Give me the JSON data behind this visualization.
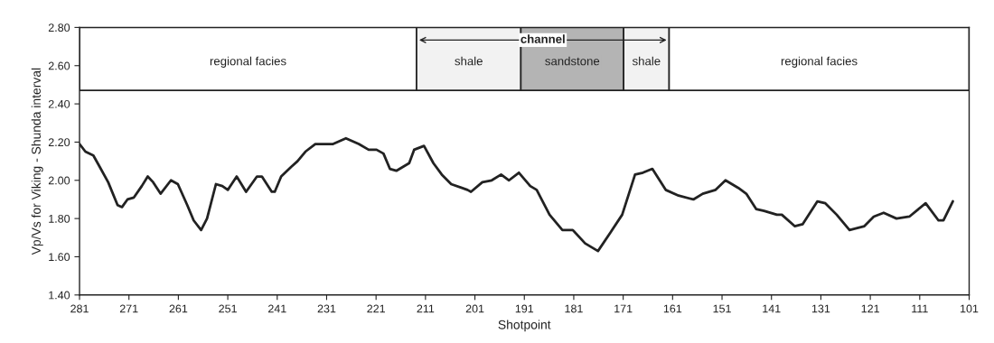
{
  "chart_data": {
    "type": "line",
    "xlabel": "Shotpoint",
    "ylabel": "Vp/Vs for Viking - Shunda interval",
    "xlim": [
      281,
      101
    ],
    "xticks": [
      281,
      271,
      261,
      251,
      241,
      231,
      221,
      211,
      201,
      191,
      181,
      171,
      161,
      151,
      141,
      131,
      121,
      111,
      101
    ],
    "ylim": [
      1.4,
      2.8
    ],
    "yticks": [
      {
        "value": 1.4,
        "label": "1.40"
      },
      {
        "value": 1.6,
        "label": "1.60"
      },
      {
        "value": 1.8,
        "label": "1.80"
      },
      {
        "value": 2.0,
        "label": "2.00"
      },
      {
        "value": 2.2,
        "label": "2.20"
      },
      {
        "value": 2.4,
        "label": "2.40"
      },
      {
        "value": 2.6,
        "label": "2.60"
      },
      {
        "value": 2.8,
        "label": "2.80"
      }
    ],
    "grid": false,
    "legend": false,
    "marker": "none",
    "line_style": "solid",
    "ref_lines": [
      {
        "axis": "y",
        "value": 2.47,
        "color": "#222222"
      }
    ],
    "bands": [
      {
        "axis": "x",
        "from": 281,
        "to": 212.8,
        "label": "regional facies",
        "color": "#ffffff"
      },
      {
        "axis": "x",
        "from": 212.8,
        "to": 191.7,
        "label": "shale",
        "color": "#f2f2f2"
      },
      {
        "axis": "x",
        "from": 191.7,
        "to": 170.9,
        "label": "sandstone",
        "color": "#b4b4b4"
      },
      {
        "axis": "x",
        "from": 170.9,
        "to": 161.7,
        "label": "shale",
        "color": "#f2f2f2"
      },
      {
        "axis": "x",
        "from": 161.7,
        "to": 101,
        "label": "regional facies",
        "color": "#ffffff"
      }
    ],
    "annotations": [
      "channel"
    ],
    "series": [
      {
        "color": "#222222",
        "x": [
          281,
          279.8,
          278.2,
          276.9,
          275.2,
          273.3,
          272.4,
          271.3,
          270.0,
          268.4,
          267.2,
          266.1,
          264.6,
          262.5,
          261.1,
          259.2,
          257.9,
          256.4,
          255.2,
          253.4,
          252.1,
          251.0,
          249.2,
          247.3,
          245.1,
          244.1,
          242.1,
          241.5,
          240.2,
          238.2,
          236.9,
          235.3,
          233.3,
          229.7,
          227.1,
          224.5,
          222.5,
          220.9,
          219.5,
          218.2,
          216.9,
          214.3,
          213.3,
          211.3,
          209.4,
          207.7,
          205.8,
          202.5,
          201.8,
          199.5,
          197.6,
          195.7,
          194.1,
          192.1,
          189.8,
          188.5,
          185.9,
          183.3,
          181.2,
          178.7,
          176.1,
          173.5,
          171.2,
          168.6,
          167.0,
          165.1,
          162.4,
          159.8,
          156.8,
          154.9,
          152.3,
          150.3,
          147.7,
          146.1,
          144.1,
          142.5,
          139.9,
          138.9,
          136.3,
          134.7,
          131.7,
          130.1,
          127.8,
          125.2,
          122.2,
          120.3,
          118.3,
          115.7,
          113.1,
          109.8,
          107.2,
          106.2,
          104.3
        ],
        "values": [
          2.19,
          2.15,
          2.13,
          2.07,
          1.99,
          1.87,
          1.86,
          1.9,
          1.91,
          1.97,
          2.02,
          1.99,
          1.93,
          2.0,
          1.98,
          1.87,
          1.79,
          1.74,
          1.8,
          1.98,
          1.97,
          1.95,
          2.02,
          1.94,
          2.02,
          2.02,
          1.94,
          1.94,
          2.02,
          2.07,
          2.1,
          2.15,
          2.19,
          2.19,
          2.22,
          2.19,
          2.16,
          2.16,
          2.14,
          2.06,
          2.05,
          2.09,
          2.16,
          2.18,
          2.09,
          2.03,
          1.98,
          1.95,
          1.94,
          1.99,
          2.0,
          2.03,
          2.0,
          2.04,
          1.97,
          1.95,
          1.82,
          1.74,
          1.74,
          1.67,
          1.63,
          1.73,
          1.82,
          2.03,
          2.04,
          2.06,
          1.95,
          1.92,
          1.9,
          1.93,
          1.95,
          2.0,
          1.96,
          1.93,
          1.85,
          1.84,
          1.82,
          1.82,
          1.76,
          1.77,
          1.89,
          1.88,
          1.82,
          1.74,
          1.76,
          1.81,
          1.83,
          1.8,
          1.81,
          1.88,
          1.79,
          1.79,
          1.89
        ]
      }
    ]
  }
}
